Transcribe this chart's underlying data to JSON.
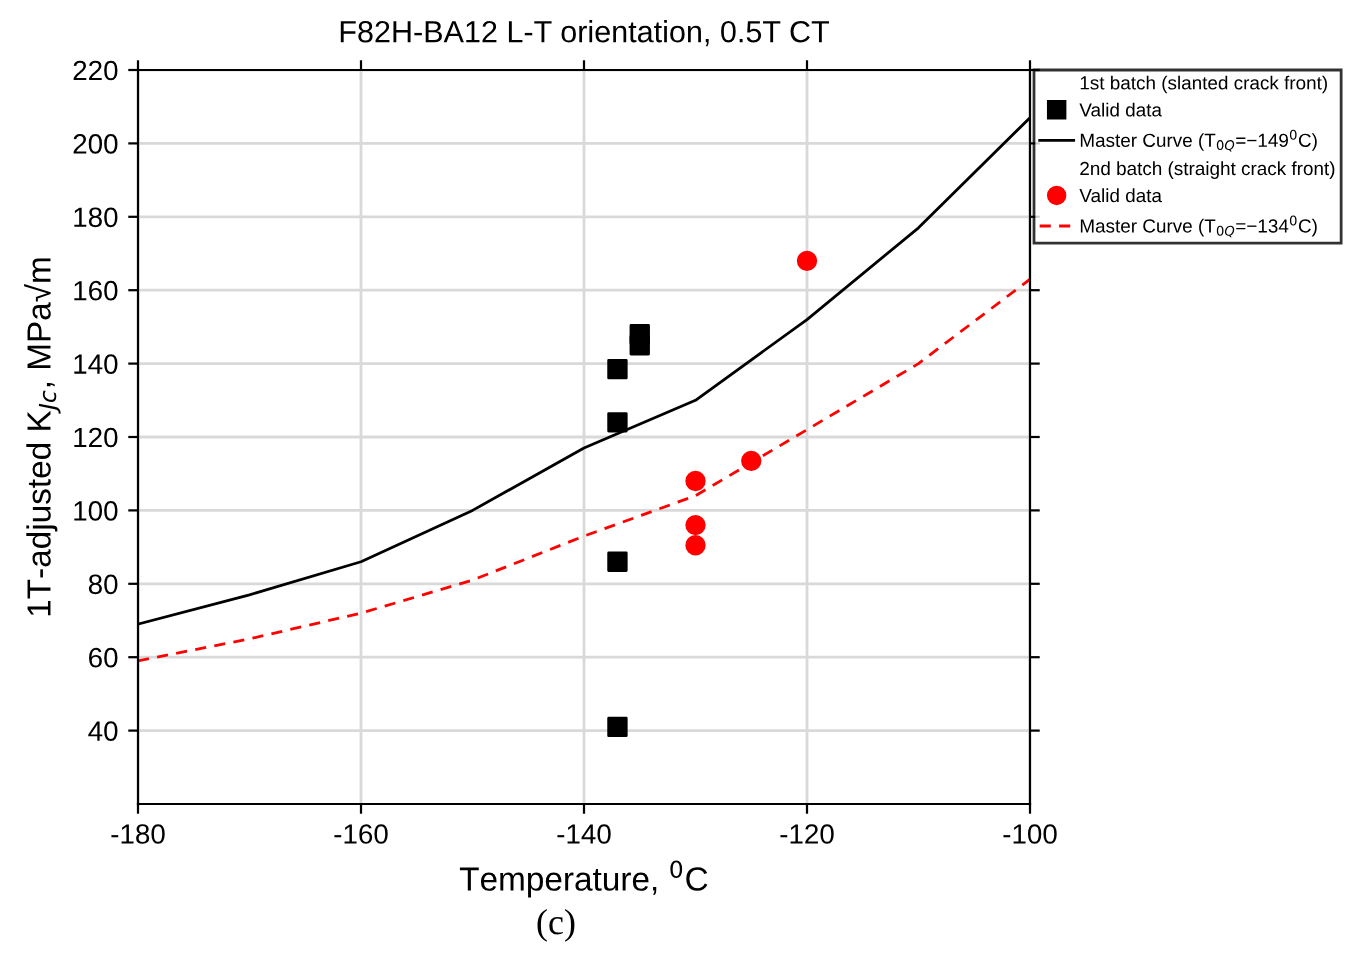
{
  "chart_data": {
    "type": "scatter",
    "title": "F82H-BA12 L-T orientation, 0.5T CT",
    "xlabel": "Temperature, $^{0}$C",
    "ylabel": "1T-adjusted K$_{Jc}$, MPa√m",
    "annotations": [
      "1st batch (slanted crack front)",
      "2nd batch (straight crack front)",
      "(c)"
    ],
    "series": [
      {
        "name": "Valid data",
        "marker": "square",
        "color": "#000000",
        "x": [
          -137,
          -137,
          -137,
          -137,
          -135,
          -135
        ],
        "values": [
          41,
          86,
          124,
          138.5,
          145,
          148
        ]
      },
      {
        "name": "Master Curve (T$_{0Q}$=−149$^{0}$C)",
        "type": "line",
        "marker": "none",
        "line_style": "solid",
        "color": "#000000",
        "x": [
          -180,
          -170,
          -160,
          -150,
          -140,
          -130,
          -120,
          -110,
          -100
        ],
        "values": [
          69,
          77,
          86,
          100,
          117,
          130,
          152,
          177,
          207
        ]
      },
      {
        "name": "Valid data",
        "marker": "circle",
        "color": "#ff0000",
        "x": [
          -130,
          -130,
          -130,
          -125,
          -120
        ],
        "values": [
          108,
          96,
          90.5,
          113.5,
          168
        ]
      },
      {
        "name": "Master Curve (T$_{0Q}$=−134$^{0}$C)",
        "type": "line",
        "marker": "none",
        "line_style": "dashed",
        "color": "#ff0000",
        "x": [
          -180,
          -170,
          -160,
          -150,
          -140,
          -130,
          -120,
          -110,
          -100
        ],
        "values": [
          59,
          65,
          72,
          81,
          93,
          104,
          122,
          140,
          163
        ]
      }
    ],
    "xlim": [
      -180,
      -100
    ],
    "xticks": [
      -180,
      -160,
      -140,
      -120,
      -100
    ],
    "ylim": [
      20,
      220
    ],
    "yticks": [
      40,
      60,
      80,
      100,
      120,
      140,
      160,
      180,
      200,
      220
    ],
    "grid": true,
    "legend": "top right"
  }
}
